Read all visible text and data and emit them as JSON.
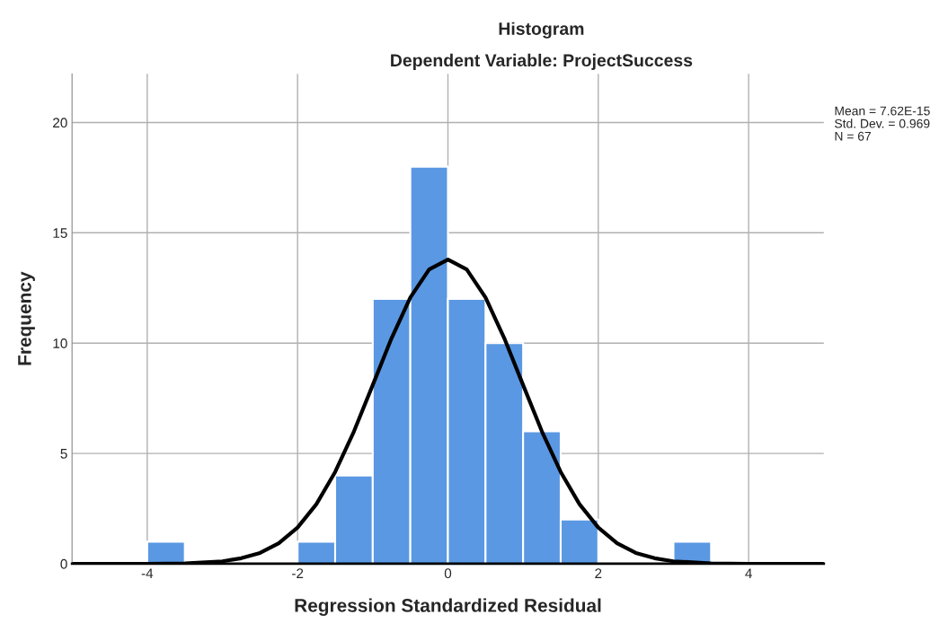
{
  "chart_data": {
    "type": "histogram",
    "title": "Histogram",
    "subtitle": "Dependent Variable: ProjectSuccess",
    "xlabel": "Regression Standardized Residual",
    "ylabel": "Frequency",
    "bins": [
      -4,
      -3.5,
      -3,
      -2.5,
      -2,
      -1.5,
      -1,
      -0.5,
      0,
      0.5,
      1,
      1.5,
      2,
      2.5,
      3,
      3.5
    ],
    "values": [
      1,
      0,
      0,
      0,
      1,
      4,
      12,
      18,
      12,
      10,
      6,
      2,
      0,
      0,
      1
    ],
    "color": "#5a98e3",
    "series": [
      {
        "type": "line",
        "color": "#000000",
        "x": [
          -5,
          -4,
          -3.5,
          -3,
          -2.75,
          -2.5,
          -2.25,
          -2,
          -1.75,
          -1.5,
          -1.25,
          -1,
          -0.75,
          -0.5,
          -0.25,
          0,
          0.25,
          0.5,
          0.75,
          1,
          1.25,
          1.5,
          1.75,
          2,
          2.25,
          2.5,
          2.75,
          3,
          3.5,
          4,
          5
        ],
        "values": [
          0,
          0,
          0.02,
          0.11,
          0.25,
          0.49,
          0.93,
          1.64,
          2.7,
          4.16,
          6.0,
          8.1,
          10.22,
          12.07,
          13.34,
          13.79,
          13.34,
          12.07,
          10.22,
          8.1,
          6.0,
          4.16,
          2.7,
          1.64,
          0.93,
          0.49,
          0.25,
          0.11,
          0.02,
          0,
          0
        ]
      }
    ],
    "xlim": [
      -5,
      5
    ],
    "ylim": [
      0,
      22.2
    ],
    "xticks": [
      -4,
      -2,
      0,
      2,
      4
    ],
    "yticks": [
      0,
      5,
      10,
      15,
      20
    ],
    "grid": true,
    "annotations": [
      "Mean = 7.62E-15",
      "Std. Dev. = 0.969",
      "N = 67"
    ]
  }
}
